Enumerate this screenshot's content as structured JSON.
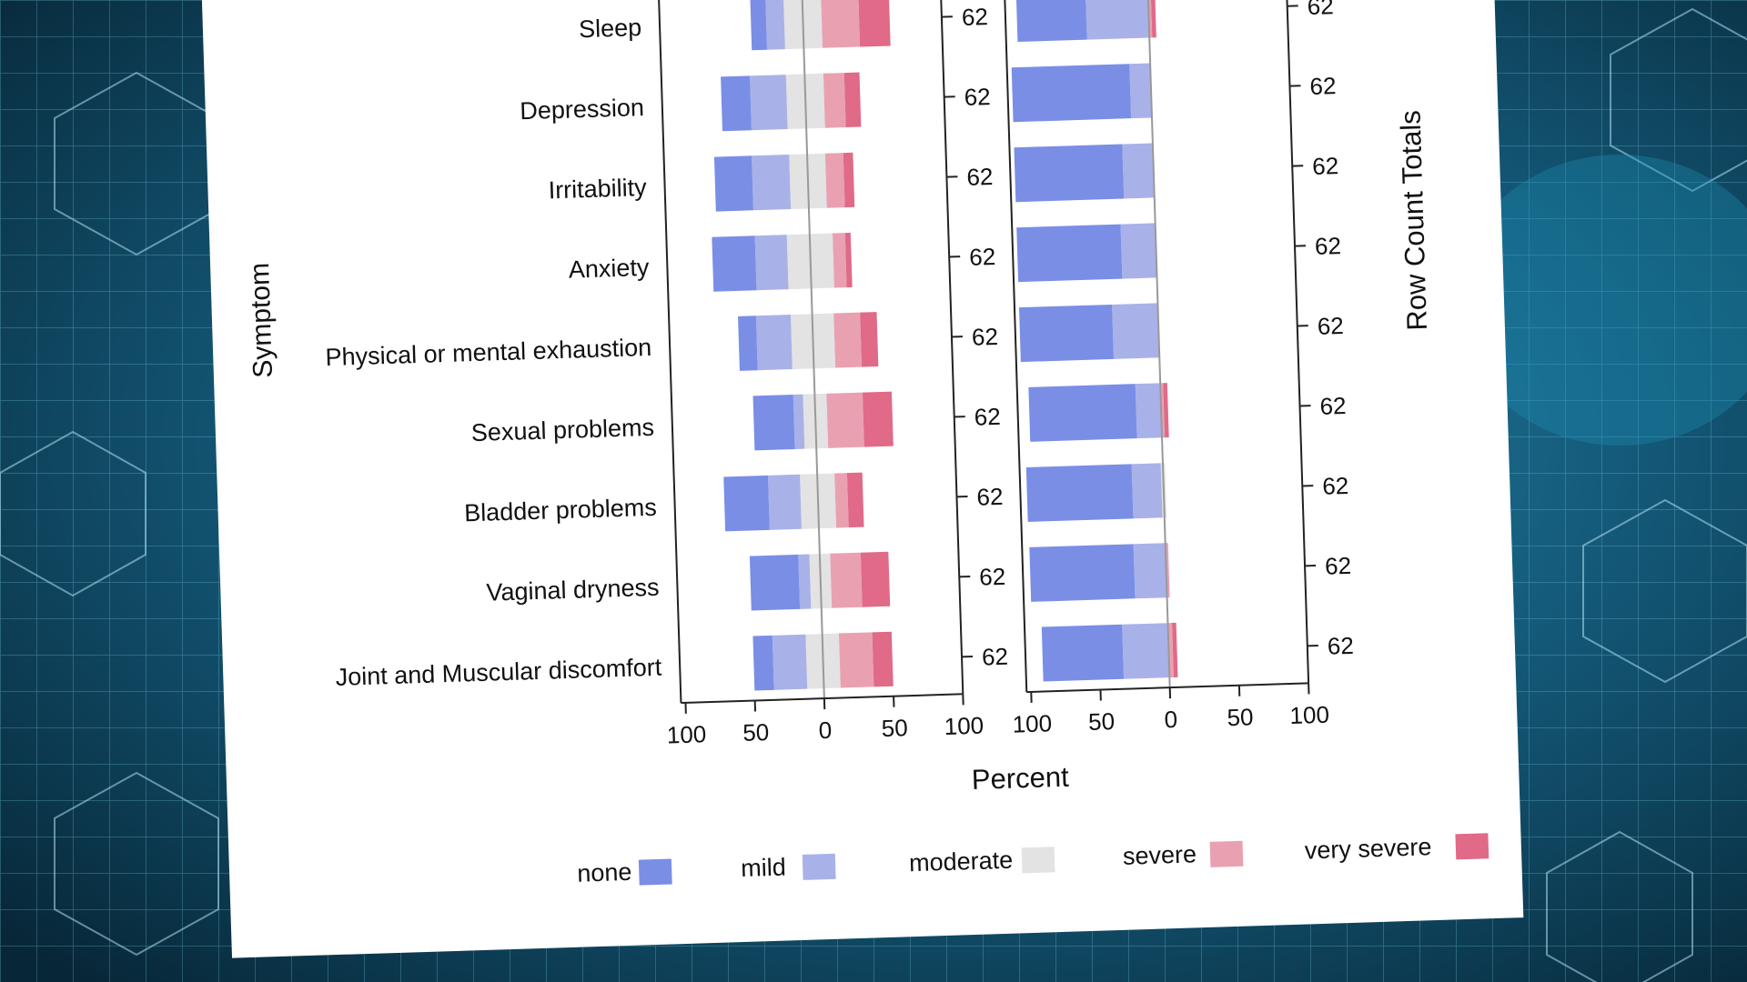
{
  "chart_data": {
    "type": "bar",
    "subtype": "diverging-stacked-likert",
    "ylabel": "Symptom",
    "xlabel": "Percent",
    "right_axis_label": "Row Count Totals",
    "xlim": [
      -100,
      100
    ],
    "xticks": [
      "100",
      "50",
      "0",
      "50",
      "100"
    ],
    "grid": false,
    "legend_position": "bottom",
    "levels": [
      "none",
      "mild",
      "moderate",
      "severe",
      "very severe"
    ],
    "colors": [
      "#7a8ee6",
      "#a8b2e8",
      "#e3e3e3",
      "#e9a1b2",
      "#e06a88"
    ],
    "categories": [
      "Sleep",
      "Depression",
      "Irritability",
      "Anxiety",
      "Physical or mental exhaustion",
      "Sexual problems",
      "Bladder problems",
      "Vaginal dryness",
      "Joint and Muscular discomfort"
    ],
    "totals": [
      "62",
      "62",
      "62",
      "62",
      "62",
      "62",
      "62",
      "62",
      "62"
    ],
    "panels": [
      {
        "name": "left",
        "series_percent": [
          [
            11,
            13,
            27,
            27,
            22
          ],
          [
            21,
            26,
            27,
            15,
            11
          ],
          [
            27,
            27,
            26,
            13,
            7
          ],
          [
            31,
            23,
            33,
            9,
            4
          ],
          [
            13,
            25,
            31,
            19,
            12
          ],
          [
            29,
            7,
            17,
            26,
            21
          ],
          [
            32,
            23,
            25,
            9,
            11
          ],
          [
            35,
            8,
            15,
            22,
            20
          ],
          [
            14,
            24,
            24,
            24,
            14
          ]
        ]
      },
      {
        "name": "right",
        "series_percent": [
          [
            50,
            45,
            0,
            2,
            3
          ],
          [
            85,
            15,
            0,
            0,
            0
          ],
          [
            78,
            22,
            0,
            0,
            0
          ],
          [
            75,
            25,
            0,
            0,
            0
          ],
          [
            67,
            33,
            0,
            0,
            0
          ],
          [
            77,
            18,
            0,
            2,
            3
          ],
          [
            76,
            21,
            3,
            0,
            0
          ],
          [
            75,
            23,
            0,
            2,
            0
          ],
          [
            58,
            33,
            0,
            3,
            3
          ]
        ]
      }
    ]
  }
}
